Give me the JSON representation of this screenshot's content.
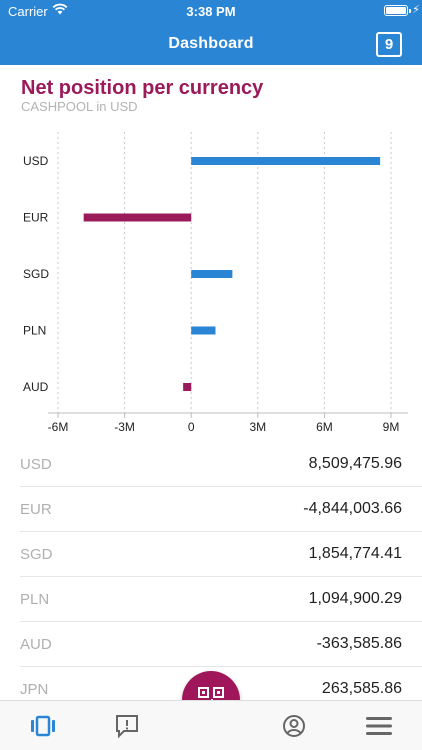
{
  "status_bar": {
    "carrier": "Carrier",
    "time": "3:38 PM"
  },
  "nav": {
    "title": "Dashboard",
    "badge": "9"
  },
  "chart_header": {
    "title": "Net position per currency",
    "subtitle": "CASHPOOL in USD"
  },
  "chart_data": {
    "type": "bar",
    "orientation": "horizontal",
    "categories": [
      "USD",
      "EUR",
      "SGD",
      "PLN",
      "AUD"
    ],
    "values": [
      8509475.96,
      -4844003.66,
      1854774.41,
      1094900.29,
      -363585.86
    ],
    "xlim": [
      -6000000,
      9000000
    ],
    "x_ticks": [
      -6000000,
      -3000000,
      0,
      3000000,
      6000000,
      9000000
    ],
    "x_tick_labels": [
      "-6M",
      "-3M",
      "0",
      "3M",
      "6M",
      "9M"
    ],
    "grid": "vertical dashed",
    "colors": {
      "positive": "#2a86d5",
      "negative": "#9b1b5a"
    }
  },
  "list": [
    {
      "currency": "USD",
      "value": "8,509,475.96"
    },
    {
      "currency": "EUR",
      "value": "-4,844,003.66"
    },
    {
      "currency": "SGD",
      "value": "1,854,774.41"
    },
    {
      "currency": "PLN",
      "value": "1,094,900.29"
    },
    {
      "currency": "AUD",
      "value": "-363,585.86"
    },
    {
      "currency": "JPN",
      "value": "263,585.86"
    }
  ],
  "tabs": [
    {
      "name": "dashboard",
      "icon": "cards-icon",
      "active": true
    },
    {
      "name": "messages",
      "icon": "message-alert-icon",
      "active": false
    },
    {
      "name": "scan",
      "icon": "qr-code-icon",
      "active": false
    },
    {
      "name": "profile",
      "icon": "user-circle-icon",
      "active": false
    },
    {
      "name": "menu",
      "icon": "hamburger-menu-icon",
      "active": false
    }
  ],
  "colors": {
    "accent": "#2a86d5",
    "brand": "#9b1b5a",
    "scan_button": "#a0165a"
  }
}
